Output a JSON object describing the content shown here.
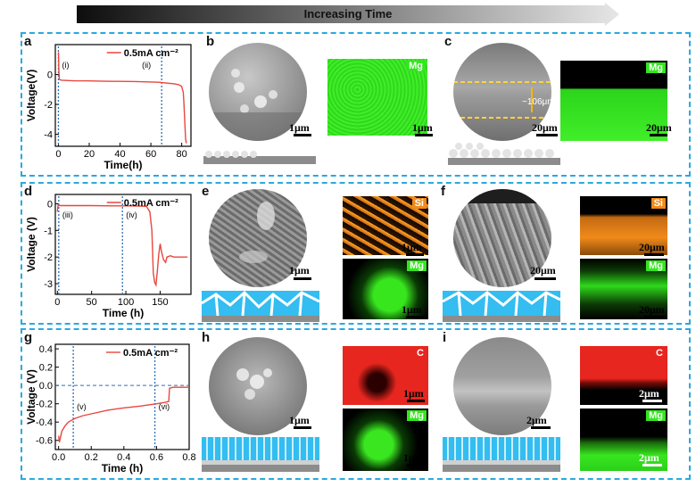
{
  "banner": {
    "label": "Increasing Time"
  },
  "colors": {
    "accent_blue": "#29a9e0",
    "curve_red": "#e8473e",
    "marker_blue": "#2e6fb5",
    "mg_green": "#33e61e",
    "si_orange": "#f08a1a",
    "c_red": "#e6261f",
    "film_blue": "#33bdf0"
  },
  "panels": {
    "a": {
      "letter": "a"
    },
    "b": {
      "letter": "b"
    },
    "c": {
      "letter": "c"
    },
    "d": {
      "letter": "d"
    },
    "e": {
      "letter": "e"
    },
    "f": {
      "letter": "f"
    },
    "g": {
      "letter": "g"
    },
    "h": {
      "letter": "h"
    },
    "i": {
      "letter": "i"
    }
  },
  "element_tags": {
    "mg": "Mg",
    "si": "Si",
    "c": "C"
  },
  "annotations": {
    "thickness": "~106μm"
  },
  "scale_bars": {
    "b_sem": "1μm",
    "b_map": "1μm",
    "c_sem": "20μm",
    "c_map": "20μm",
    "e_sem": "1μm",
    "e_si": "1μm",
    "e_mg": "1μm",
    "f_sem": "20μm",
    "f_si": "20μm",
    "f_mg": "20μm",
    "h_sem": "1μm",
    "h_c": "1μm",
    "h_mg": "1μm",
    "i_sem": "2μm",
    "i_c": "2μm",
    "i_mg": "2μm"
  },
  "chart_data": [
    {
      "panel": "a",
      "type": "line",
      "legend": "0.5mA cm⁻²",
      "xlabel": "Time(h)",
      "ylabel": "Voltage(V)",
      "xlim": [
        -2,
        86
      ],
      "ylim": [
        -4.8,
        2
      ],
      "xticks": [
        0,
        20,
        40,
        60,
        80
      ],
      "yticks": [
        0,
        -2,
        -4
      ],
      "series": [
        {
          "x": [
            0,
            0.3,
            0.6,
            1,
            2,
            5,
            10,
            20,
            30,
            40,
            50,
            60,
            65,
            70,
            75,
            78,
            80,
            81,
            81.5,
            82,
            82.5,
            83
          ],
          "y": [
            1.5,
            0.2,
            -0.3,
            -0.35,
            -0.38,
            -0.4,
            -0.42,
            -0.43,
            -0.45,
            -0.46,
            -0.47,
            -0.5,
            -0.52,
            -0.57,
            -0.62,
            -0.68,
            -0.8,
            -1.2,
            -2.0,
            -3.2,
            -4.3,
            -4.6
          ]
        }
      ],
      "markers": [
        {
          "x": 0,
          "label": "(i)"
        },
        {
          "x": 67,
          "label": "(ii)"
        }
      ]
    },
    {
      "panel": "d",
      "type": "line",
      "legend": "0.5mA  cm⁻²",
      "xlabel": "Time (h)",
      "ylabel": "Voltage (V)",
      "xlim": [
        -3,
        195
      ],
      "ylim": [
        -3.4,
        0.35
      ],
      "xticks": [
        0,
        50,
        100,
        150
      ],
      "yticks": [
        0,
        -1,
        -2,
        -3
      ],
      "series": [
        {
          "x": [
            0,
            1,
            2,
            5,
            20,
            50,
            80,
            100,
            120,
            130,
            135,
            138,
            140,
            142,
            144,
            146,
            148,
            150,
            152,
            155,
            158,
            160,
            165,
            170,
            180,
            190
          ],
          "y": [
            -0.3,
            -0.05,
            -0.06,
            -0.07,
            -0.07,
            -0.07,
            -0.08,
            -0.08,
            -0.09,
            -0.1,
            -0.3,
            -1.0,
            -2.6,
            -2.95,
            -3.05,
            -2.5,
            -1.9,
            -1.5,
            -1.8,
            -2.1,
            -2.2,
            -2.0,
            -1.95,
            -2.0,
            -2.0,
            -2.0
          ]
        }
      ],
      "markers": [
        {
          "x": 2,
          "label": "(iii)"
        },
        {
          "x": 95,
          "label": "(iv)"
        }
      ]
    },
    {
      "panel": "g",
      "type": "line",
      "legend": "0.5mA  cm⁻²",
      "xlabel": "Time (h)",
      "ylabel": "Voltage (V)",
      "xlim": [
        -0.02,
        0.8
      ],
      "ylim": [
        -0.7,
        0.45
      ],
      "xticks": [
        0.0,
        0.2,
        0.4,
        0.6,
        0.8
      ],
      "yticks": [
        0.4,
        0.2,
        0.0,
        -0.2,
        -0.4,
        -0.6
      ],
      "hline": 0.0,
      "series": [
        {
          "x": [
            0,
            0.005,
            0.01,
            0.02,
            0.04,
            0.06,
            0.1,
            0.15,
            0.2,
            0.3,
            0.4,
            0.5,
            0.6,
            0.65,
            0.675,
            0.68,
            0.7,
            0.75,
            0.8
          ],
          "y": [
            -0.55,
            -0.62,
            -0.58,
            -0.5,
            -0.44,
            -0.4,
            -0.36,
            -0.33,
            -0.31,
            -0.27,
            -0.245,
            -0.225,
            -0.2,
            -0.185,
            -0.175,
            -0.03,
            -0.02,
            -0.02,
            -0.02
          ]
        }
      ],
      "markers": [
        {
          "x": 0.09,
          "label": "(v)"
        },
        {
          "x": 0.59,
          "label": "(vi)"
        }
      ]
    }
  ]
}
